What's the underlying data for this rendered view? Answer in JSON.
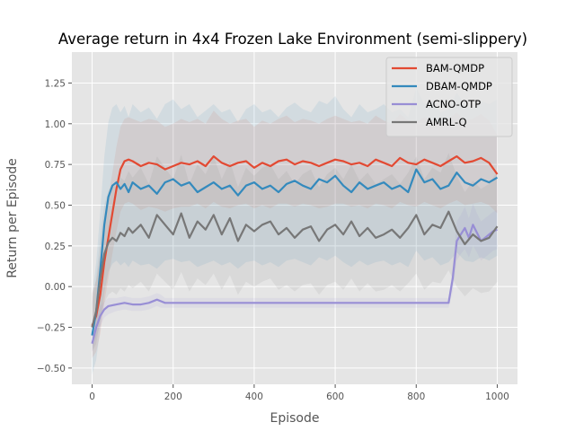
{
  "chart_data": {
    "type": "line",
    "title": "Average return in 4x4 Frozen Lake Environment (semi-slippery)",
    "xlabel": "Episode",
    "ylabel": "Return per Episode",
    "xlim": [
      -50,
      1050
    ],
    "ylim": [
      -0.6,
      1.44
    ],
    "xticks": [
      0,
      200,
      400,
      600,
      800,
      1000
    ],
    "yticks": [
      -0.5,
      -0.25,
      0.0,
      0.25,
      0.5,
      0.75,
      1.0,
      1.25
    ],
    "xtick_labels": [
      "0",
      "200",
      "400",
      "600",
      "800",
      "1000"
    ],
    "ytick_labels": [
      "−0.50",
      "−0.25",
      "0.00",
      "0.25",
      "0.50",
      "0.75",
      "1.00",
      "1.25"
    ],
    "grid": true,
    "legend_position": "top-right",
    "series": [
      {
        "name": "BAM-QMDP",
        "color": "#E24A33",
        "x": [
          0,
          10,
          20,
          30,
          40,
          50,
          60,
          70,
          80,
          90,
          100,
          120,
          140,
          160,
          180,
          200,
          220,
          240,
          260,
          280,
          300,
          320,
          340,
          360,
          380,
          400,
          420,
          440,
          460,
          480,
          500,
          520,
          540,
          560,
          580,
          600,
          620,
          640,
          660,
          680,
          700,
          720,
          740,
          760,
          780,
          800,
          820,
          840,
          860,
          880,
          900,
          920,
          940,
          960,
          980,
          1000
        ],
        "y": [
          -0.24,
          -0.18,
          -0.05,
          0.15,
          0.3,
          0.45,
          0.6,
          0.72,
          0.77,
          0.78,
          0.77,
          0.74,
          0.76,
          0.75,
          0.72,
          0.74,
          0.76,
          0.75,
          0.77,
          0.74,
          0.8,
          0.76,
          0.74,
          0.76,
          0.77,
          0.73,
          0.76,
          0.74,
          0.77,
          0.78,
          0.75,
          0.77,
          0.76,
          0.74,
          0.76,
          0.78,
          0.77,
          0.75,
          0.76,
          0.74,
          0.78,
          0.76,
          0.74,
          0.79,
          0.76,
          0.75,
          0.78,
          0.76,
          0.74,
          0.77,
          0.8,
          0.76,
          0.77,
          0.79,
          0.76,
          0.69
        ],
        "band": [
          0.2,
          0.22,
          0.24,
          0.25,
          0.25,
          0.25,
          0.26,
          0.26,
          0.26,
          0.26,
          0.26,
          0.27,
          0.27,
          0.27,
          0.26,
          0.26,
          0.27,
          0.26,
          0.26,
          0.26,
          0.28,
          0.27,
          0.26,
          0.26,
          0.26,
          0.25,
          0.26,
          0.26,
          0.26,
          0.27,
          0.26,
          0.26,
          0.26,
          0.26,
          0.27,
          0.27,
          0.26,
          0.26,
          0.26,
          0.26,
          0.27,
          0.26,
          0.26,
          0.27,
          0.26,
          0.26,
          0.26,
          0.26,
          0.26,
          0.26,
          0.27,
          0.26,
          0.26,
          0.27,
          0.26,
          0.24
        ]
      },
      {
        "name": "DBAM-QMDP",
        "color": "#348ABD",
        "x": [
          0,
          10,
          20,
          30,
          40,
          50,
          60,
          70,
          80,
          90,
          100,
          120,
          140,
          160,
          180,
          200,
          220,
          240,
          260,
          280,
          300,
          320,
          340,
          360,
          380,
          400,
          420,
          440,
          460,
          480,
          500,
          520,
          540,
          560,
          580,
          600,
          620,
          640,
          660,
          680,
          700,
          720,
          740,
          760,
          780,
          800,
          820,
          840,
          860,
          880,
          900,
          920,
          940,
          960,
          980,
          1000
        ],
        "y": [
          -0.3,
          -0.15,
          0.1,
          0.38,
          0.55,
          0.62,
          0.64,
          0.6,
          0.63,
          0.58,
          0.64,
          0.6,
          0.62,
          0.57,
          0.64,
          0.66,
          0.62,
          0.64,
          0.58,
          0.61,
          0.64,
          0.6,
          0.62,
          0.56,
          0.62,
          0.64,
          0.6,
          0.62,
          0.58,
          0.63,
          0.65,
          0.62,
          0.6,
          0.66,
          0.64,
          0.68,
          0.62,
          0.58,
          0.64,
          0.6,
          0.62,
          0.64,
          0.6,
          0.62,
          0.58,
          0.72,
          0.64,
          0.66,
          0.6,
          0.62,
          0.7,
          0.64,
          0.62,
          0.66,
          0.64,
          0.67
        ],
        "band": [
          0.24,
          0.3,
          0.36,
          0.42,
          0.46,
          0.48,
          0.48,
          0.47,
          0.48,
          0.46,
          0.48,
          0.47,
          0.48,
          0.46,
          0.48,
          0.49,
          0.47,
          0.48,
          0.46,
          0.47,
          0.48,
          0.47,
          0.47,
          0.45,
          0.47,
          0.48,
          0.47,
          0.47,
          0.46,
          0.47,
          0.48,
          0.47,
          0.47,
          0.48,
          0.48,
          0.49,
          0.47,
          0.46,
          0.48,
          0.47,
          0.47,
          0.48,
          0.47,
          0.47,
          0.46,
          0.5,
          0.48,
          0.48,
          0.47,
          0.47,
          0.49,
          0.48,
          0.47,
          0.48,
          0.48,
          0.48
        ]
      },
      {
        "name": "ACNO-OTP",
        "color": "#988ED5",
        "x": [
          0,
          10,
          20,
          30,
          40,
          60,
          80,
          100,
          120,
          140,
          160,
          170,
          180,
          200,
          300,
          400,
          500,
          600,
          700,
          800,
          880,
          890,
          900,
          910,
          920,
          930,
          940,
          950,
          960,
          970,
          980,
          990,
          1000
        ],
        "y": [
          -0.35,
          -0.25,
          -0.18,
          -0.14,
          -0.12,
          -0.11,
          -0.1,
          -0.11,
          -0.11,
          -0.1,
          -0.08,
          -0.09,
          -0.1,
          -0.1,
          -0.1,
          -0.1,
          -0.1,
          -0.1,
          -0.1,
          -0.1,
          -0.1,
          0.05,
          0.28,
          0.32,
          0.36,
          0.3,
          0.38,
          0.33,
          0.28,
          0.3,
          0.32,
          0.34,
          0.35
        ],
        "band": [
          0.05,
          0.06,
          0.06,
          0.05,
          0.05,
          0.04,
          0.04,
          0.04,
          0.04,
          0.04,
          0.04,
          0.04,
          0.03,
          0.03,
          0.03,
          0.03,
          0.03,
          0.03,
          0.03,
          0.03,
          0.03,
          0.08,
          0.12,
          0.12,
          0.13,
          0.12,
          0.13,
          0.12,
          0.12,
          0.12,
          0.12,
          0.12,
          0.12
        ]
      },
      {
        "name": "AMRL-Q",
        "color": "#777777",
        "x": [
          0,
          10,
          20,
          30,
          40,
          50,
          60,
          70,
          80,
          90,
          100,
          120,
          140,
          160,
          180,
          200,
          220,
          240,
          260,
          280,
          300,
          320,
          340,
          360,
          380,
          400,
          420,
          440,
          460,
          480,
          500,
          520,
          540,
          560,
          580,
          600,
          620,
          640,
          660,
          680,
          700,
          720,
          740,
          760,
          780,
          800,
          820,
          840,
          860,
          880,
          900,
          920,
          940,
          960,
          980,
          1000
        ],
        "y": [
          -0.25,
          -0.15,
          0.05,
          0.2,
          0.27,
          0.3,
          0.28,
          0.33,
          0.31,
          0.36,
          0.33,
          0.38,
          0.3,
          0.44,
          0.38,
          0.32,
          0.45,
          0.3,
          0.4,
          0.35,
          0.44,
          0.32,
          0.42,
          0.28,
          0.38,
          0.34,
          0.38,
          0.4,
          0.32,
          0.36,
          0.3,
          0.35,
          0.37,
          0.28,
          0.35,
          0.38,
          0.32,
          0.4,
          0.31,
          0.36,
          0.3,
          0.32,
          0.35,
          0.3,
          0.36,
          0.44,
          0.32,
          0.38,
          0.36,
          0.46,
          0.34,
          0.26,
          0.32,
          0.28,
          0.3,
          0.37
        ],
        "band": [
          0.15,
          0.2,
          0.25,
          0.3,
          0.32,
          0.33,
          0.33,
          0.34,
          0.34,
          0.35,
          0.34,
          0.35,
          0.33,
          0.36,
          0.35,
          0.34,
          0.36,
          0.33,
          0.35,
          0.34,
          0.36,
          0.34,
          0.35,
          0.33,
          0.35,
          0.34,
          0.35,
          0.35,
          0.34,
          0.35,
          0.33,
          0.34,
          0.35,
          0.33,
          0.34,
          0.35,
          0.34,
          0.35,
          0.34,
          0.34,
          0.33,
          0.34,
          0.34,
          0.33,
          0.34,
          0.36,
          0.34,
          0.35,
          0.34,
          0.36,
          0.34,
          0.32,
          0.33,
          0.32,
          0.33,
          0.34
        ]
      }
    ]
  }
}
